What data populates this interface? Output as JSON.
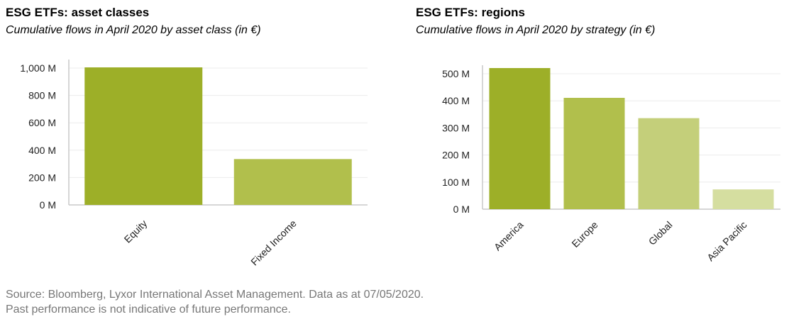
{
  "chart_data": [
    {
      "type": "bar",
      "title": "ESG ETFs: asset classes",
      "subtitle": "Cumulative flows in April 2020 by asset class (in €)",
      "categories": [
        "Equity",
        "Fixed Income"
      ],
      "values": [
        1005,
        335
      ],
      "colors": [
        "#9daf28",
        "#b1bf4c"
      ],
      "yticks": [
        "0 M",
        "200 M",
        "400 M",
        "600 M",
        "800 M",
        "1,000 M"
      ],
      "ylim": [
        0,
        1000
      ],
      "grid": true
    },
    {
      "type": "bar",
      "title": "ESG ETFs: regions",
      "subtitle": "Cumulative flows in April 2020 by strategy (in €)",
      "categories": [
        "America",
        "Europe",
        "Global",
        "Asia Pacific"
      ],
      "values": [
        521,
        411,
        336,
        73
      ],
      "colors": [
        "#9daf28",
        "#b1bf4c",
        "#c4cf7a",
        "#d5dea0"
      ],
      "yticks": [
        "0 M",
        "100 M",
        "200 M",
        "300 M",
        "400 M",
        "500 M"
      ],
      "ylim": [
        0,
        500
      ],
      "grid": true
    }
  ],
  "source": {
    "line1": "Source: Bloomberg, Lyxor International Asset Management. Data as at 07/05/2020.",
    "line2": "Past performance is not indicative of future performance."
  }
}
